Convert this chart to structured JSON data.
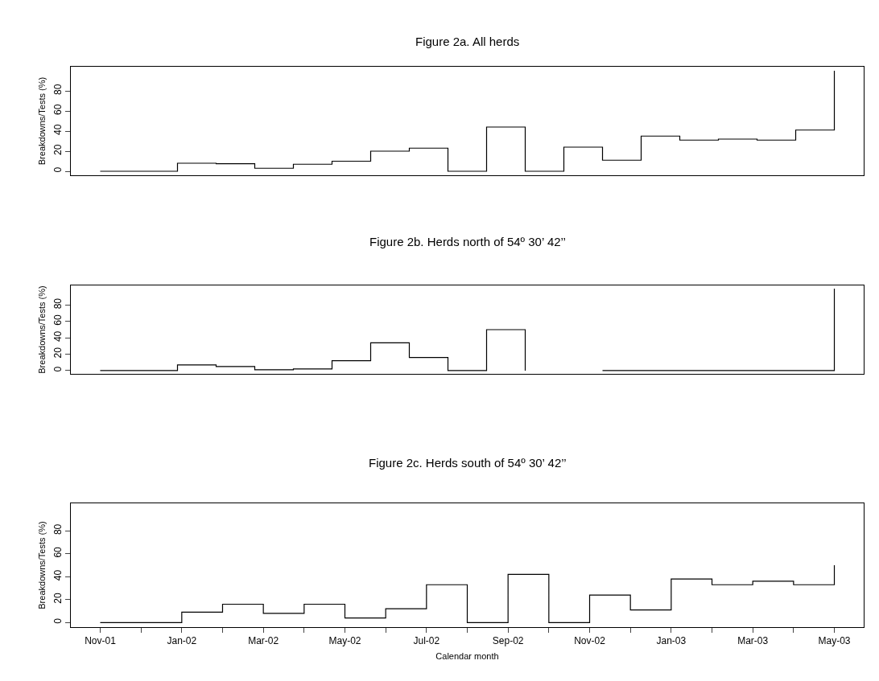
{
  "chart_data": [
    {
      "type": "step",
      "title": "Figure 2a. All herds",
      "ylabel": "Breakdowns/Tests (%)",
      "categories": [
        null,
        null,
        null,
        null,
        null,
        null,
        null,
        null,
        null,
        null,
        null,
        null,
        null,
        null,
        null,
        null,
        null,
        null,
        null,
        null
      ],
      "series": [
        {
          "color": "#000000",
          "values": [
            0,
            0,
            8,
            7.5,
            3,
            7,
            10,
            20,
            23,
            0,
            44,
            0,
            24,
            11,
            35,
            31,
            32,
            31,
            41,
            100
          ]
        }
      ],
      "ylim": [
        -4,
        104
      ],
      "yticks": [
        0,
        20,
        40,
        60,
        80
      ],
      "tick_labels": "y",
      "marker": "none",
      "line_style": "solid"
    },
    {
      "type": "step",
      "title": "Figure 2b. Herds north of 54º 30’ 42’’",
      "ylabel": "Breakdowns/Tests (%)",
      "categories": [
        null,
        null,
        null,
        null,
        null,
        null,
        null,
        null,
        null,
        null,
        null,
        null,
        null,
        null,
        null,
        null,
        null,
        null,
        null,
        null
      ],
      "series": [
        {
          "color": "#000000",
          "values": [
            0,
            0,
            7,
            5,
            1,
            2,
            12,
            34,
            16,
            0,
            50,
            0,
            null,
            0,
            0,
            0,
            0,
            0,
            0,
            100
          ]
        }
      ],
      "ylim": [
        -4,
        104
      ],
      "yticks": [
        0,
        20,
        40,
        60,
        80
      ],
      "tick_labels": "y",
      "marker": "none",
      "line_style": "solid"
    },
    {
      "type": "step",
      "title": "Figure 2c. Herds south of 54º 30’ 42’’",
      "ylabel": "Breakdowns/Tests (%)",
      "xlabel": "Calendar month",
      "categories": [
        "Nov-01",
        null,
        "Jan-02",
        null,
        "Mar-02",
        null,
        "May-02",
        null,
        "Jul-02",
        null,
        "Sep-02",
        null,
        "Nov-02",
        null,
        "Jan-03",
        null,
        "Mar-03",
        null,
        "May-03"
      ],
      "series": [
        {
          "color": "#000000",
          "values": [
            0,
            0,
            9,
            16,
            8,
            16,
            4,
            12,
            33,
            0,
            42,
            0,
            24,
            11,
            38,
            33,
            36,
            33,
            50
          ]
        }
      ],
      "ylim": [
        -4,
        104
      ],
      "yticks": [
        0,
        20,
        40,
        60,
        80
      ],
      "marker": "none",
      "line_style": "solid"
    }
  ]
}
